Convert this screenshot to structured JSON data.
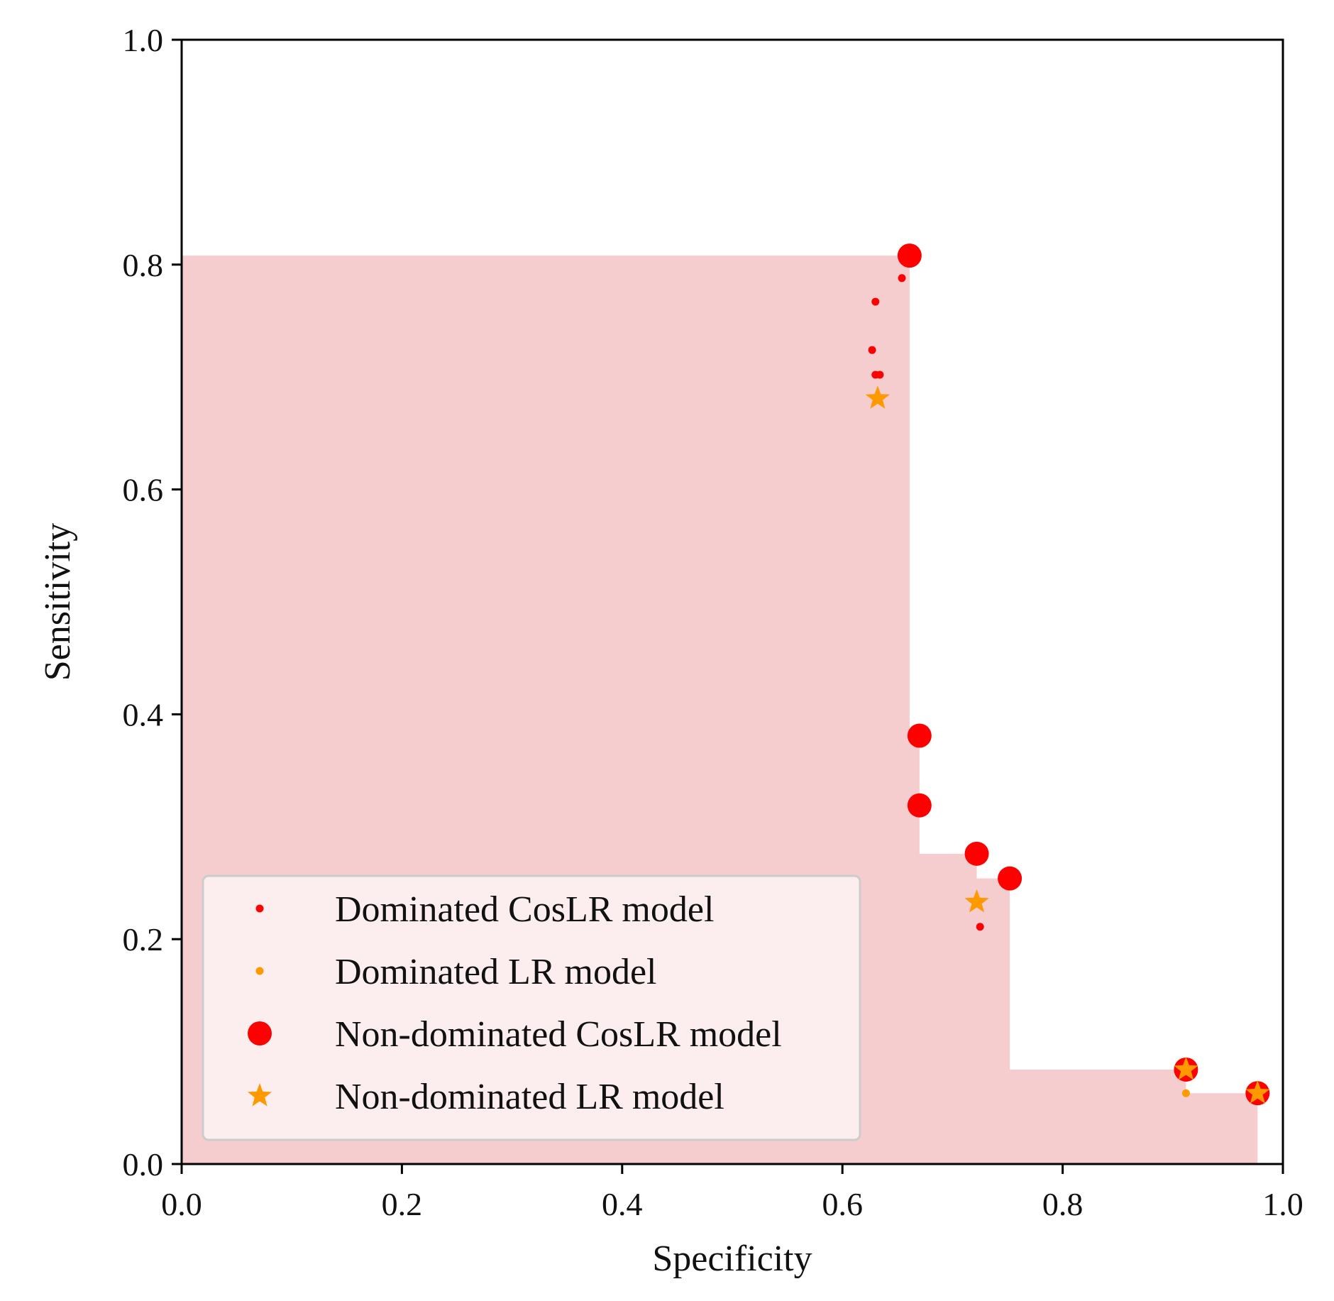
{
  "chart_data": {
    "type": "scatter",
    "title": "",
    "xlabel": "Specificity",
    "ylabel": "Sensitivity",
    "xlim": [
      0.0,
      1.0
    ],
    "ylim": [
      0.0,
      1.0
    ],
    "xticks": [
      "0.0",
      "0.2",
      "0.4",
      "0.6",
      "0.8",
      "1.0"
    ],
    "yticks": [
      "0.0",
      "0.2",
      "0.4",
      "0.6",
      "0.8",
      "1.0"
    ],
    "grid": false,
    "legend_position": "lower-left",
    "hypervolume_region": {
      "color": "#f5cdcf",
      "steps": [
        {
          "x": 0.661,
          "y": 0.808
        },
        {
          "x": 0.67,
          "y": 0.381
        },
        {
          "x": 0.67,
          "y": 0.319
        },
        {
          "x": 0.722,
          "y": 0.276
        },
        {
          "x": 0.752,
          "y": 0.254
        },
        {
          "x": 0.912,
          "y": 0.084
        },
        {
          "x": 0.977,
          "y": 0.063
        }
      ]
    },
    "series": [
      {
        "name": "Dominated CosLR model",
        "marker": "small-dot",
        "color": "#ff0000",
        "points": [
          {
            "x": 0.654,
            "y": 0.788
          },
          {
            "x": 0.63,
            "y": 0.767
          },
          {
            "x": 0.627,
            "y": 0.724
          },
          {
            "x": 0.63,
            "y": 0.702
          },
          {
            "x": 0.634,
            "y": 0.702
          },
          {
            "x": 0.725,
            "y": 0.211
          }
        ]
      },
      {
        "name": "Dominated LR model",
        "marker": "small-dot",
        "color": "#ff9900",
        "points": [
          {
            "x": 0.912,
            "y": 0.063
          }
        ]
      },
      {
        "name": "Non-dominated CosLR model",
        "marker": "large-dot",
        "color": "#ff0000",
        "points": [
          {
            "x": 0.661,
            "y": 0.808
          },
          {
            "x": 0.67,
            "y": 0.381
          },
          {
            "x": 0.67,
            "y": 0.319
          },
          {
            "x": 0.722,
            "y": 0.276
          },
          {
            "x": 0.752,
            "y": 0.254
          },
          {
            "x": 0.912,
            "y": 0.084
          },
          {
            "x": 0.977,
            "y": 0.063
          }
        ]
      },
      {
        "name": "Non-dominated LR model",
        "marker": "star",
        "color": "#ff9900",
        "points": [
          {
            "x": 0.632,
            "y": 0.681
          },
          {
            "x": 0.722,
            "y": 0.233
          },
          {
            "x": 0.912,
            "y": 0.084
          },
          {
            "x": 0.977,
            "y": 0.063
          }
        ]
      }
    ]
  }
}
